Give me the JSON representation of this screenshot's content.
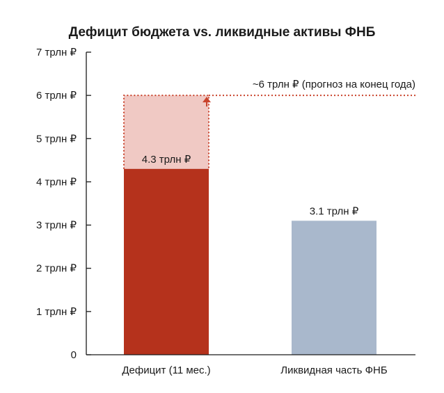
{
  "chart_data": {
    "type": "bar",
    "title": "Дефицит бюджета vs. ликвидные активы ФНБ",
    "xlabel": "",
    "ylabel": "",
    "ylim": [
      0,
      7
    ],
    "yticks": [
      {
        "value": 0,
        "label": "0"
      },
      {
        "value": 1,
        "label": "1 трлн ₽"
      },
      {
        "value": 2,
        "label": "2 трлн ₽"
      },
      {
        "value": 3,
        "label": "3 трлн ₽"
      },
      {
        "value": 4,
        "label": "4 трлн ₽"
      },
      {
        "value": 5,
        "label": "5 трлн ₽"
      },
      {
        "value": 6,
        "label": "6 трлн ₽"
      },
      {
        "value": 7,
        "label": "7 трлн ₽"
      }
    ],
    "grid": false,
    "categories": [
      "Дефицит (11 мес.)",
      "Ликвидная часть ФНБ"
    ],
    "values": [
      4.3,
      3.1
    ],
    "data_labels": [
      "4.3 трлн ₽",
      "3.1 трлн ₽"
    ],
    "colors": [
      "#b5321c",
      "#a9b8cc"
    ],
    "forecast": {
      "value": 6,
      "category": "Дефицит (11 мес.)",
      "label": "~6 трлн ₽ (прогноз на конец года)",
      "fill_color": "#f0c9c4",
      "line_color": "#c9432c",
      "line_style": "dotted"
    }
  }
}
